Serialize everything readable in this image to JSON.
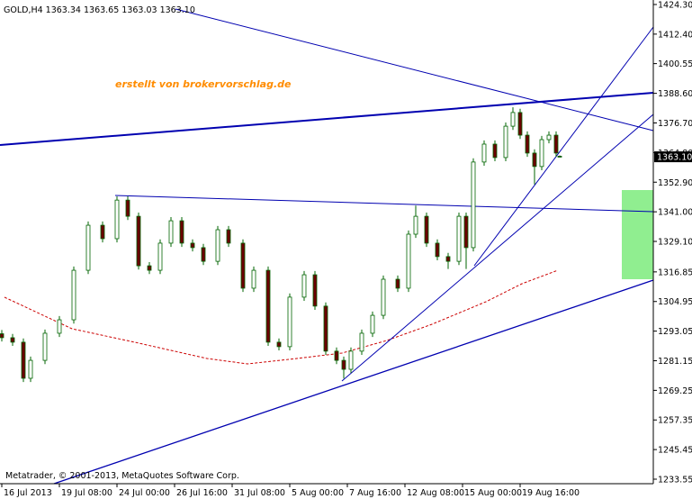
{
  "chart_data": {
    "type": "candlestick",
    "symbol_info": "GOLD,H4  1363.34 1363.65 1363.03 1363.10",
    "watermark": "erstellt von brokervorschlag.de",
    "copyright": "Metatrader, © 2001-2013, MetaQuotes Software Corp.",
    "last_price": {
      "value": 1363.1,
      "label": "1363.10"
    },
    "up_color": "#ffffff",
    "down_color": "#6b0000",
    "wick_color": "#006400",
    "x": [
      0,
      3,
      6,
      8,
      12,
      16,
      20,
      24,
      28,
      32,
      35,
      38,
      41,
      44,
      47,
      50,
      53,
      56,
      60,
      63,
      67,
      70,
      74,
      77,
      80,
      84,
      87,
      90,
      93,
      95,
      97,
      100,
      103,
      106,
      110,
      113,
      115,
      118,
      121,
      124,
      127,
      129,
      131,
      134,
      137,
      140,
      142,
      144,
      146,
      148,
      150,
      152,
      154,
      155
    ],
    "open": [
      1292.0,
      1290.4,
      1288.6,
      1274.1,
      1281.3,
      1292.2,
      1297.6,
      1317.5,
      1335.6,
      1330.2,
      1345.7,
      1339.2,
      1319.3,
      1317.5,
      1328.4,
      1337.4,
      1328.4,
      1326.6,
      1321.1,
      1333.8,
      1328.4,
      1310.3,
      1317.5,
      1288.6,
      1286.8,
      1306.7,
      1315.7,
      1303.1,
      1285.0,
      1281.3,
      1277.7,
      1285.0,
      1292.2,
      1299.4,
      1313.9,
      1310.3,
      1332.0,
      1339.2,
      1328.4,
      1323.0,
      1321.1,
      1339.2,
      1326.6,
      1361.0,
      1368.2,
      1362.8,
      1375.4,
      1380.9,
      1371.8,
      1364.6,
      1359.2,
      1370.0,
      1371.8,
      1363.34
    ],
    "high": [
      1293.5,
      1291.9,
      1290.1,
      1282.8,
      1293.7,
      1299.1,
      1319.0,
      1337.1,
      1337.1,
      1347.2,
      1347.2,
      1340.7,
      1320.8,
      1329.9,
      1338.9,
      1338.9,
      1329.9,
      1328.1,
      1335.3,
      1335.3,
      1329.9,
      1319.0,
      1319.0,
      1290.1,
      1308.2,
      1317.2,
      1317.2,
      1304.6,
      1286.5,
      1282.8,
      1286.5,
      1293.7,
      1300.9,
      1315.4,
      1315.4,
      1333.5,
      1343.5,
      1340.7,
      1329.9,
      1324.5,
      1340.7,
      1340.7,
      1362.5,
      1369.7,
      1369.7,
      1376.9,
      1383.0,
      1382.4,
      1373.3,
      1366.1,
      1371.5,
      1373.3,
      1373.3,
      1363.65
    ],
    "low": [
      1288.9,
      1287.1,
      1272.6,
      1272.6,
      1279.8,
      1290.7,
      1296.1,
      1316.0,
      1328.7,
      1328.7,
      1337.7,
      1317.8,
      1316.0,
      1316.0,
      1326.9,
      1326.9,
      1325.1,
      1319.6,
      1319.6,
      1326.9,
      1308.8,
      1308.8,
      1287.1,
      1285.3,
      1285.3,
      1305.2,
      1301.6,
      1283.5,
      1279.8,
      1274.0,
      1276.2,
      1283.5,
      1290.7,
      1297.9,
      1308.8,
      1308.8,
      1330.5,
      1326.9,
      1321.5,
      1318.0,
      1319.6,
      1318.0,
      1325.1,
      1359.5,
      1361.3,
      1361.3,
      1373.9,
      1370.3,
      1363.1,
      1352.0,
      1357.7,
      1368.5,
      1363.1,
      1363.03
    ],
    "close": [
      1290.4,
      1288.6,
      1274.1,
      1281.3,
      1292.2,
      1297.6,
      1317.5,
      1335.6,
      1330.2,
      1345.7,
      1339.2,
      1319.3,
      1317.5,
      1328.4,
      1337.4,
      1328.4,
      1326.6,
      1321.1,
      1333.8,
      1328.4,
      1310.3,
      1317.5,
      1288.6,
      1286.8,
      1306.7,
      1315.7,
      1303.1,
      1285.0,
      1281.3,
      1277.7,
      1285.0,
      1292.2,
      1299.4,
      1313.9,
      1310.3,
      1332.0,
      1339.2,
      1328.4,
      1323.0,
      1321.1,
      1339.2,
      1326.6,
      1361.0,
      1368.2,
      1362.8,
      1375.4,
      1380.9,
      1371.8,
      1364.6,
      1359.2,
      1370.0,
      1371.8,
      1364.6,
      1363.1
    ],
    "xlim": [
      -0.5,
      181
    ],
    "xticks": [
      {
        "value": 0,
        "label": "16 Jul 2013"
      },
      {
        "value": 16,
        "label": "19 Jul 08:00"
      },
      {
        "value": 32,
        "label": "24 Jul 00:00"
      },
      {
        "value": 48,
        "label": "26 Jul 16:00"
      },
      {
        "value": 64,
        "label": "31 Jul 08:00"
      },
      {
        "value": 80,
        "label": "5 Aug 00:00"
      },
      {
        "value": 96,
        "label": "7 Aug 16:00"
      },
      {
        "value": 112,
        "label": "12 Aug 08:00"
      },
      {
        "value": 128,
        "label": "15 Aug 00:00"
      },
      {
        "value": 144,
        "label": "19 Aug 16:00"
      }
    ],
    "ylim": [
      1231.74,
      1426.11
    ],
    "yticks": [
      {
        "value": 1424.3,
        "label": "1424.30"
      },
      {
        "value": 1412.4,
        "label": "1412.40"
      },
      {
        "value": 1400.55,
        "label": "1400.55"
      },
      {
        "value": 1388.6,
        "label": "1388.60"
      },
      {
        "value": 1376.7,
        "label": "1376.70"
      },
      {
        "value": 1364.8,
        "label": "1364.80"
      },
      {
        "value": 1352.9,
        "label": "1352.90"
      },
      {
        "value": 1341,
        "label": "1341.00"
      },
      {
        "value": 1329.1,
        "label": "1329.10"
      },
      {
        "value": 1316.85,
        "label": "1316.85"
      },
      {
        "value": 1304.95,
        "label": "1304.95"
      },
      {
        "value": 1293.05,
        "label": "1293.05"
      },
      {
        "value": 1281.15,
        "label": "1281.15"
      },
      {
        "value": 1269.25,
        "label": "1269.25"
      },
      {
        "value": 1257.35,
        "label": "1257.35"
      },
      {
        "value": 1245.45,
        "label": "1245.45"
      },
      {
        "value": 1233.55,
        "label": "1233.55"
      }
    ]
  }
}
